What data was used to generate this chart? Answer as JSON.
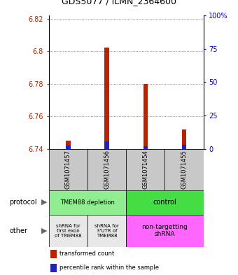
{
  "title": "GDS5077 / ILMN_2364600",
  "samples": [
    "GSM1071457",
    "GSM1071456",
    "GSM1071454",
    "GSM1071455"
  ],
  "red_values": [
    6.745,
    6.802,
    6.78,
    6.752
  ],
  "blue_values": [
    6.742,
    6.7445,
    6.7415,
    6.7425
  ],
  "red_base": 6.74,
  "ylim_min": 6.74,
  "ylim_max": 6.822,
  "yticks_left": [
    6.82,
    6.8,
    6.78,
    6.76,
    6.74
  ],
  "yticks_right": [
    100,
    75,
    50,
    25,
    0
  ],
  "bar_width": 0.12,
  "red_color": "#bb2200",
  "blue_color": "#2222bb",
  "protocol_color_1": "#90EE90",
  "protocol_color_2": "#44DD44",
  "other_color_1": "#E8E8E8",
  "other_color_2": "#FF66FF",
  "sample_bg_color": "#C8C8C8",
  "legend_red": "transformed count",
  "legend_blue": "percentile rank within the sample",
  "grid_color": "#666666",
  "title_fontsize": 9,
  "tick_fontsize": 7,
  "label_fontsize": 7,
  "sample_fontsize": 6,
  "annot_fontsize": 6
}
